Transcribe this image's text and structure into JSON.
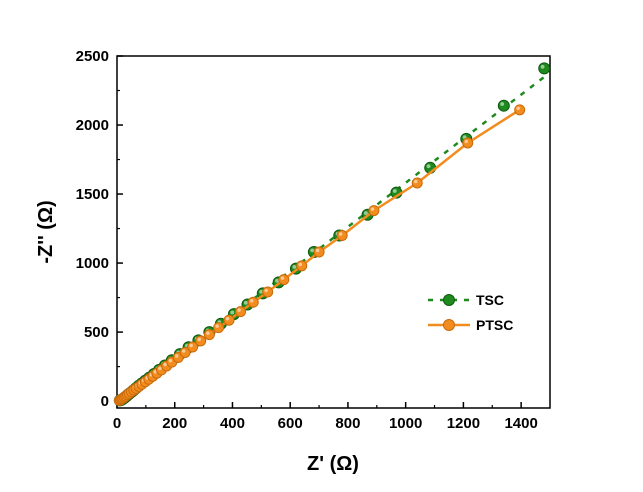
{
  "chart_data": {
    "type": "scatter",
    "xlabel": "Z' (Ω)",
    "ylabel": "-Z'' (Ω)",
    "xlim": [
      0,
      1500
    ],
    "ylim": [
      -50,
      2500
    ],
    "x_ticks": [
      "0",
      "200",
      "400",
      "600",
      "800",
      "1000",
      "1200",
      "1400"
    ],
    "y_ticks": [
      "0",
      "500",
      "1000",
      "1500",
      "2000",
      "2500"
    ],
    "grid": false,
    "legend_position": "right",
    "series": [
      {
        "name": "TSC",
        "color": "#1e8a1e",
        "line_style": "dashed",
        "x": [
          10,
          16,
          22,
          28,
          34,
          40,
          48,
          56,
          65,
          75,
          86,
          98,
          112,
          128,
          146,
          166,
          190,
          218,
          248,
          282,
          320,
          360,
          405,
          452,
          505,
          560,
          620,
          682,
          770,
          868,
          968,
          1085,
          1210,
          1340,
          1480
        ],
        "y": [
          5,
          10,
          18,
          28,
          38,
          50,
          62,
          76,
          92,
          110,
          128,
          148,
          170,
          196,
          226,
          258,
          296,
          340,
          390,
          440,
          500,
          560,
          630,
          700,
          780,
          860,
          960,
          1080,
          1200,
          1350,
          1510,
          1690,
          1900,
          2140,
          2410
        ]
      },
      {
        "name": "PTSC",
        "color": "#f28c1e",
        "line_style": "solid",
        "x": [
          8,
          12,
          16,
          20,
          25,
          30,
          36,
          42,
          50,
          58,
          66,
          76,
          86,
          98,
          110,
          124,
          138,
          154,
          172,
          190,
          212,
          236,
          262,
          290,
          320,
          352,
          388,
          428,
          472,
          522,
          578,
          640,
          700,
          780,
          890,
          1040,
          1215,
          1395
        ],
        "y": [
          4,
          8,
          14,
          20,
          28,
          36,
          46,
          56,
          68,
          80,
          92,
          106,
          122,
          140,
          158,
          180,
          202,
          226,
          254,
          282,
          316,
          352,
          392,
          436,
          482,
          532,
          586,
          648,
          716,
          790,
          880,
          980,
          1080,
          1200,
          1380,
          1580,
          1870,
          2110
        ]
      }
    ]
  }
}
